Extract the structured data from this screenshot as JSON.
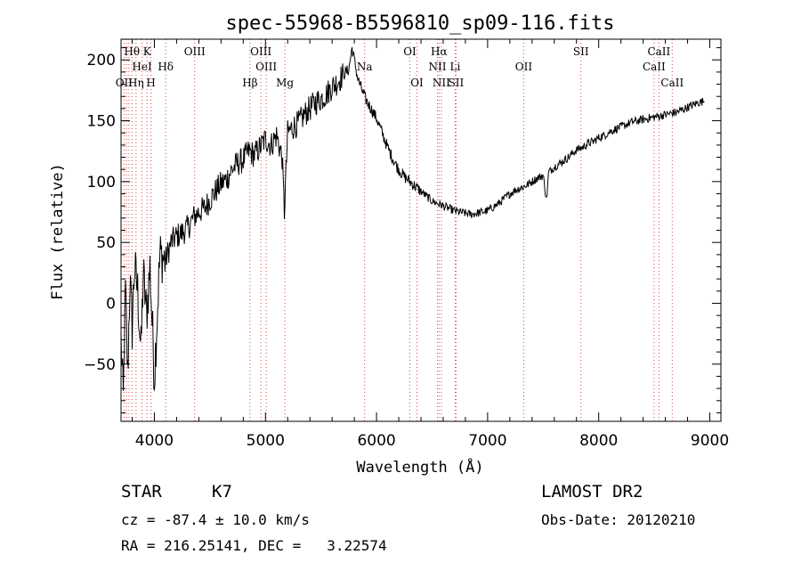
{
  "chart_data": {
    "type": "line",
    "title": "spec-55968-B5596810_sp09-116.fits",
    "xlabel": "Wavelength (Å)",
    "ylabel": "Flux (relative)",
    "xlim": [
      3700,
      9100
    ],
    "ylim": [
      -97,
      217
    ],
    "xticks": [
      4000,
      5000,
      6000,
      7000,
      8000,
      9000
    ],
    "yticks": [
      -50,
      0,
      50,
      100,
      150,
      200
    ],
    "grid": false,
    "series": [
      {
        "values_x": [
          3700,
          3720,
          3740,
          3760,
          3780,
          3800,
          3820,
          3850,
          3880,
          3900,
          3930,
          3960,
          4000,
          4050,
          4100,
          4150,
          4200,
          4250,
          4300,
          4350,
          4400,
          4450,
          4500,
          4550,
          4600,
          4650,
          4700,
          4750,
          4800,
          4850,
          4900,
          4950,
          5000,
          5050,
          5100,
          5150,
          5170,
          5200,
          5250,
          5300,
          5350,
          5400,
          5450,
          5500,
          5550,
          5600,
          5650,
          5700,
          5750,
          5780,
          5800,
          5830,
          5870,
          5900,
          5950,
          6000,
          6050,
          6100,
          6150,
          6200,
          6250,
          6300,
          6350,
          6400,
          6450,
          6500,
          6550,
          6600,
          6650,
          6700,
          6750,
          6800,
          6850,
          6900,
          6950,
          7000,
          7050,
          7100,
          7150,
          7200,
          7250,
          7300,
          7350,
          7400,
          7450,
          7500,
          7530,
          7550,
          7600,
          7650,
          7700,
          7750,
          7800,
          7850,
          7900,
          7950,
          8000,
          8050,
          8100,
          8150,
          8200,
          8250,
          8300,
          8350,
          8400,
          8450,
          8500,
          8550,
          8600,
          8650,
          8700,
          8750,
          8800,
          8850,
          8900,
          8950
        ],
        "values_y": [
          -30,
          -80,
          10,
          -60,
          20,
          -20,
          30,
          10,
          -40,
          25,
          -10,
          30,
          -60,
          40,
          35,
          50,
          55,
          58,
          62,
          70,
          75,
          78,
          85,
          92,
          98,
          102,
          110,
          115,
          118,
          125,
          122,
          128,
          135,
          130,
          138,
          120,
          75,
          140,
          145,
          148,
          155,
          160,
          165,
          168,
          172,
          178,
          182,
          188,
          192,
          210,
          200,
          185,
          175,
          168,
          160,
          152,
          140,
          128,
          118,
          110,
          104,
          100,
          96,
          92,
          88,
          84,
          82,
          80,
          78,
          76,
          75,
          74,
          73,
          74,
          75,
          76,
          79,
          82,
          86,
          90,
          93,
          95,
          97,
          100,
          103,
          105,
          85,
          108,
          112,
          115,
          118,
          122,
          126,
          128,
          131,
          133,
          136,
          138,
          141,
          143,
          145,
          147,
          149,
          150,
          151,
          152,
          153,
          154,
          155,
          156,
          157,
          159,
          161,
          163,
          165,
          166
        ]
      }
    ],
    "spectral_lines": [
      {
        "label": "Hθ",
        "x": 3798,
        "row": 0
      },
      {
        "label": "K",
        "x": 3934,
        "row": 0
      },
      {
        "label": "OIII",
        "x": 4363,
        "row": 0
      },
      {
        "label": "OIII",
        "x": 4959,
        "row": 0
      },
      {
        "label": "OI",
        "x": 6300,
        "row": 0
      },
      {
        "label": "Hα",
        "x": 6563,
        "row": 0
      },
      {
        "label": "SII",
        "x": 7840,
        "row": 0
      },
      {
        "label": "CaII",
        "x": 8542,
        "row": 0
      },
      {
        "label": "HeI",
        "x": 3889,
        "row": 1
      },
      {
        "label": "Hδ",
        "x": 4102,
        "row": 1
      },
      {
        "label": "OIII",
        "x": 5007,
        "row": 1
      },
      {
        "label": "Na",
        "x": 5893,
        "row": 1
      },
      {
        "label": "NII",
        "x": 6548,
        "row": 1
      },
      {
        "label": "Li",
        "x": 6708,
        "row": 1
      },
      {
        "label": "OII",
        "x": 7325,
        "row": 1
      },
      {
        "label": "CaII",
        "x": 8498,
        "row": 1
      },
      {
        "label": "OII",
        "x": 3727,
        "row": 2
      },
      {
        "label": "Hη",
        "x": 3835,
        "row": 2
      },
      {
        "label": "H",
        "x": 3969,
        "row": 2
      },
      {
        "label": "Hβ",
        "x": 4861,
        "row": 2
      },
      {
        "label": "Mg",
        "x": 5175,
        "row": 2
      },
      {
        "label": "OI",
        "x": 6364,
        "row": 2
      },
      {
        "label": "NII",
        "x": 6583,
        "row": 2
      },
      {
        "label": "SII",
        "x": 6716,
        "row": 2
      },
      {
        "label": "CaII",
        "x": 8662,
        "row": 2
      }
    ],
    "line_marker_x": [
      3727,
      3750,
      3771,
      3798,
      3835,
      3889,
      3934,
      3969,
      4102,
      4363,
      4861,
      4959,
      5007,
      5175,
      5893,
      6300,
      6364,
      6548,
      6563,
      6583,
      6708,
      6716,
      7325,
      7840,
      8498,
      8542,
      8662
    ]
  },
  "info": {
    "object_class": "STAR",
    "subclass": "K7",
    "survey": "LAMOST DR2",
    "velocity": "cz = -87.4 ± 10.0 km/s",
    "obs_date": "Obs-Date: 20120210",
    "coords": "RA = 216.25141, DEC =   3.22574"
  }
}
